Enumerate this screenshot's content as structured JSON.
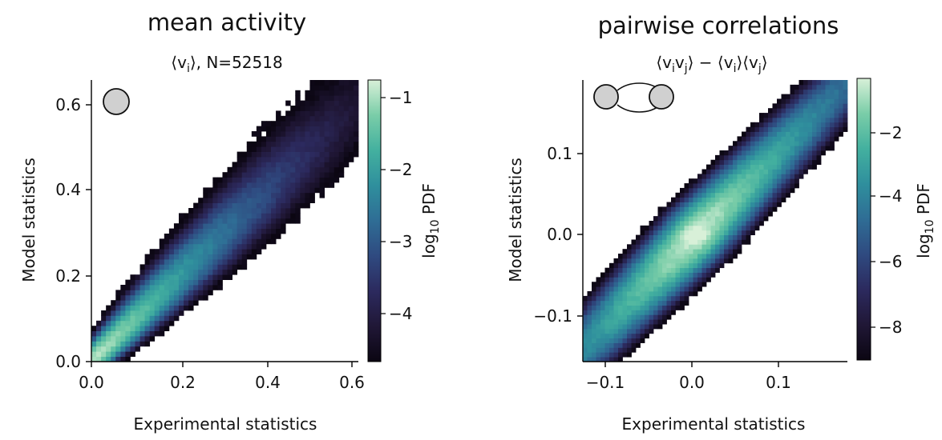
{
  "colors": {
    "background": "#ffffff",
    "axis": "#000000",
    "icon_fill": "#d0d0d0"
  },
  "colormap": [
    "#0b0612",
    "#201736",
    "#2c2a5e",
    "#2f4a80",
    "#2f6d95",
    "#2f8f9d",
    "#43b09f",
    "#7acda8",
    "#d8f0d8"
  ],
  "chart_data": [
    {
      "type": "heatmap",
      "title": "mean activity",
      "subtitle_parts": [
        "⟨v",
        "i",
        "⟩, N=52518"
      ],
      "xlabel": "Experimental statistics",
      "ylabel": "Model statistics",
      "xlim": [
        0.0,
        0.62
      ],
      "ylim": [
        0.0,
        0.66
      ],
      "xticks": [
        0.0,
        0.2,
        0.4,
        0.6
      ],
      "xtick_labels": [
        "0.0",
        "0.2",
        "0.4",
        "0.6"
      ],
      "yticks": [
        0.0,
        0.2,
        0.4,
        0.6
      ],
      "ytick_labels": [
        "0.0",
        "0.2",
        "0.4",
        "0.6"
      ],
      "colorbar": {
        "label_parts": [
          "log",
          "10",
          " PDF"
        ],
        "range": [
          -4.7,
          -0.8
        ],
        "ticks": [
          -1,
          -2,
          -3,
          -4
        ],
        "tick_labels": [
          "−1",
          "−2",
          "−3",
          "−4"
        ]
      },
      "bins": 55,
      "model": {
        "ratio": 1.0,
        "spread": 0.22,
        "scale": 0.12,
        "peak": 0.03
      },
      "icon": "single-node-icon"
    },
    {
      "type": "heatmap",
      "title": "pairwise correlations",
      "subtitle_parts": [
        "⟨v",
        "i",
        "v",
        "j",
        "⟩ − ⟨v",
        "i",
        "⟩⟨v",
        "j",
        "⟩"
      ],
      "xlabel": "Experimental statistics",
      "ylabel": "Model statistics",
      "xlim": [
        -0.13,
        0.175
      ],
      "ylim": [
        -0.155,
        0.19
      ],
      "xticks": [
        -0.1,
        0.0,
        0.1
      ],
      "xtick_labels": [
        "−0.1",
        "0.0",
        "0.1"
      ],
      "yticks": [
        -0.1,
        0.0,
        0.1
      ],
      "ytick_labels": [
        "−0.1",
        "0.0",
        "0.1"
      ],
      "colorbar": {
        "label_parts": [
          "log",
          "10",
          " PDF"
        ],
        "range": [
          -9.0,
          -0.5
        ],
        "ticks": [
          -2,
          -4,
          -6,
          -8
        ],
        "tick_labels": [
          "−2",
          "−4",
          "−6",
          "−8"
        ]
      },
      "bins": 60,
      "model": {
        "ratio": 1.08,
        "spread": 0.018,
        "scale": 0.045,
        "peak": 0.0
      },
      "icon": "node-pair-icon"
    }
  ]
}
